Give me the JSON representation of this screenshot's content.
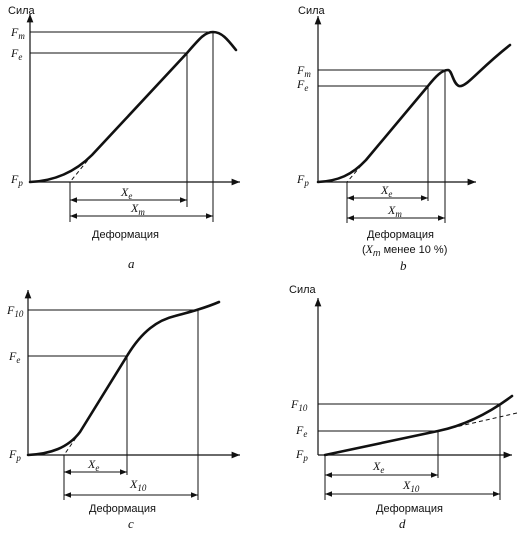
{
  "panels": {
    "a": {
      "y_axis_label": "Сила",
      "x_axis_label": "Деформация",
      "caption": "a",
      "fm": "F",
      "fm_sub": "m",
      "fe": "F",
      "fe_sub": "e",
      "fp": "F",
      "fp_sub": "p",
      "xe": "X",
      "xe_sub": "e",
      "xm": "X",
      "xm_sub": "m"
    },
    "b": {
      "y_axis_label": "Сила",
      "x_axis_label": "Деформация",
      "note_open": "(",
      "note_sym": "X",
      "note_sub": "m",
      "note_rest": " менее 10 %)",
      "caption": "b",
      "fm": "F",
      "fm_sub": "m",
      "fe": "F",
      "fe_sub": "e",
      "fp": "F",
      "fp_sub": "p",
      "xe": "X",
      "xe_sub": "e",
      "xm": "X",
      "xm_sub": "m"
    },
    "c": {
      "x_axis_label": "Деформация",
      "caption": "c",
      "f10": "F",
      "f10_sub": "10",
      "fe": "F",
      "fe_sub": "e",
      "fp": "F",
      "fp_sub": "p",
      "xe": "X",
      "xe_sub": "e",
      "x10": "X",
      "x10_sub": "10"
    },
    "d": {
      "y_axis_label": "Сила",
      "x_axis_label": "Деформация",
      "caption": "d",
      "f10": "F",
      "f10_sub": "10",
      "fe": "F",
      "fe_sub": "e",
      "fp": "F",
      "fp_sub": "p",
      "xe": "X",
      "xe_sub": "e",
      "x10": "X",
      "x10_sub": "10"
    }
  }
}
